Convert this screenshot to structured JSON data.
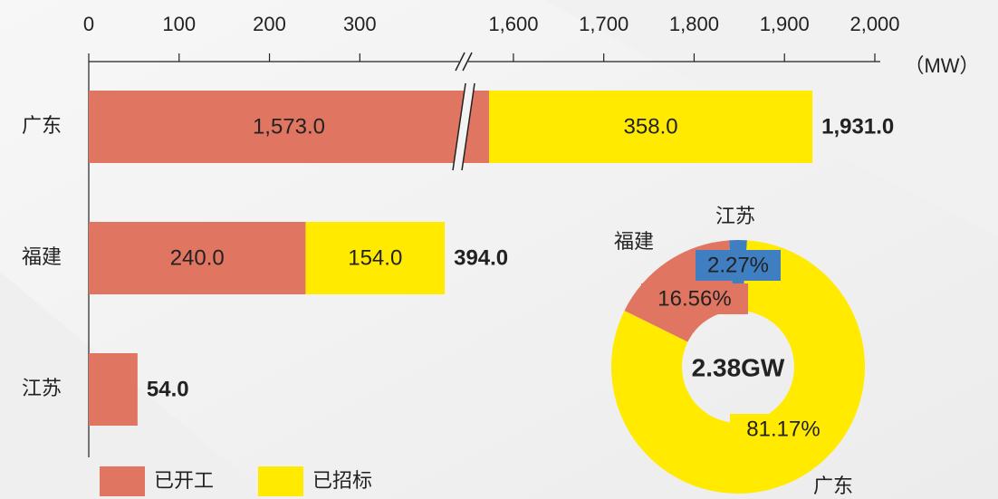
{
  "chart_data": [
    {
      "type": "bar",
      "categories": [
        "广东",
        "福建",
        "江苏"
      ],
      "series": [
        {
          "name": "已开工",
          "color": "#e07662",
          "values": [
            1573.0,
            240.0,
            54.0
          ],
          "value_labels": [
            "1,573.0",
            "240.0",
            null
          ]
        },
        {
          "name": "已招标",
          "color": "#ffea00",
          "values": [
            358.0,
            154.0,
            null
          ],
          "value_labels": [
            "358.0",
            "154.0",
            null
          ]
        }
      ],
      "totals": [
        1931.0,
        394.0,
        54.0
      ],
      "total_labels": [
        "1,931.0",
        "394.0",
        "54.0"
      ],
      "x_label": "（MW）",
      "xlim": [
        0,
        2000
      ],
      "xbreak": [
        415,
        1545
      ],
      "xticks": [
        0,
        100,
        200,
        300,
        {
          "value": 1600,
          "label": "1,600"
        },
        {
          "value": 1700,
          "label": "1,700"
        },
        {
          "value": 1800,
          "label": "1,800"
        },
        {
          "value": 1900,
          "label": "1,900"
        },
        {
          "value": 2000,
          "label": "2,000"
        }
      ],
      "legend": "bottom-left"
    },
    {
      "type": "donut",
      "center_label": "2.38GW",
      "categories": [
        "江苏",
        "广东",
        "福建"
      ],
      "values": [
        2.27,
        81.17,
        16.56
      ],
      "value_labels": [
        "2.27%",
        "81.17%",
        "16.56%"
      ],
      "colors": [
        "#3f7fc1",
        "#ffea00",
        "#e07662"
      ]
    }
  ]
}
